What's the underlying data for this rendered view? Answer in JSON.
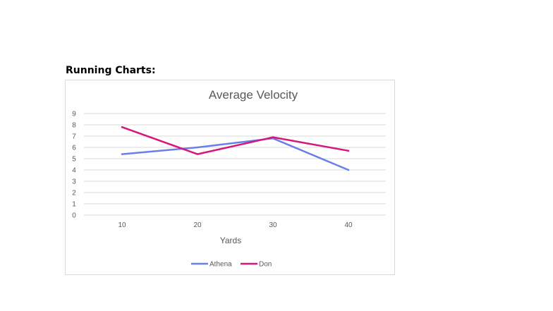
{
  "heading": "Running Charts:",
  "chart_data": {
    "type": "line",
    "title": "Average Velocity",
    "xlabel": "Yards",
    "ylabel": "",
    "categories": [
      "10",
      "20",
      "30",
      "40"
    ],
    "y_ticks": [
      "0",
      "1",
      "2",
      "3",
      "4",
      "5",
      "6",
      "7",
      "8",
      "9"
    ],
    "ylim": [
      0,
      9
    ],
    "grid": true,
    "legend_position": "bottom",
    "series": [
      {
        "name": "Athena",
        "color": "#6a7fe8",
        "values": [
          5.4,
          6.0,
          6.8,
          4.0
        ]
      },
      {
        "name": "Don",
        "color": "#d6177f",
        "values": [
          7.8,
          5.4,
          6.9,
          5.7
        ]
      }
    ]
  }
}
